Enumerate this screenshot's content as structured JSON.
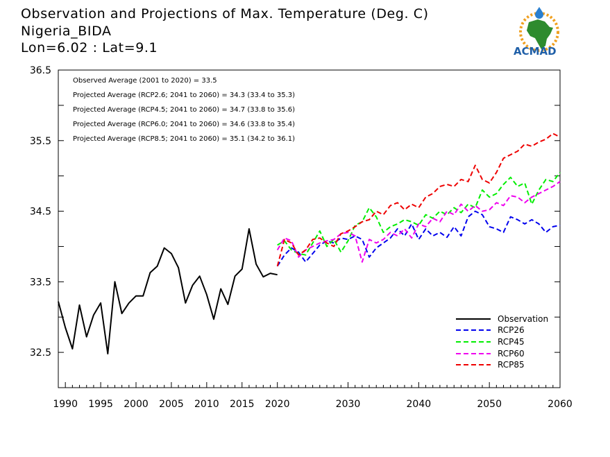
{
  "title": {
    "line1": "Observation and Projections of Max. Temperature (Deg. C)",
    "line2": "Nigeria_BIDA",
    "line3": "Lon=6.02 : Lat=9.1"
  },
  "logo": {
    "text": "ACMAD",
    "colors": {
      "land": "#2e8b2e",
      "ring": "#f0a020",
      "drop": "#2a7fd0",
      "text": "#1f5fa8"
    }
  },
  "annotations": [
    "Observed Average (2001 to 2020) = 33.5",
    "Projected Average (RCP2.6; 2041 to 2060) = 34.3 (33.4 to 35.3)",
    "Projected Average (RCP4.5; 2041 to 2060) = 34.7 (33.8 to 35.6)",
    "Projected Average (RCP6.0; 2041 to 2060) = 34.6 (33.8 to 35.4)",
    "Projected Average (RCP8.5; 2041 to 2060) = 35.1 (34.2 to 36.1)"
  ],
  "chart_data": {
    "type": "line",
    "xlim": [
      1989,
      2060
    ],
    "ylim": [
      32.0,
      36.5
    ],
    "x_ticks": [
      {
        "value": 1990,
        "label": "1990"
      },
      {
        "value": 1995,
        "label": "1995"
      },
      {
        "value": 2000,
        "label": "2000"
      },
      {
        "value": 2005,
        "label": "2005"
      },
      {
        "value": 2010,
        "label": "2010"
      },
      {
        "value": 2015,
        "label": "2015"
      },
      {
        "value": 2020,
        "label": "2020"
      },
      {
        "value": 2030,
        "label": "2030"
      },
      {
        "value": 2040,
        "label": "2040"
      },
      {
        "value": 2050,
        "label": "2050"
      },
      {
        "value": 2060,
        "label": "2060"
      }
    ],
    "y_ticks": [
      {
        "value": 32.5,
        "label": "32.5"
      },
      {
        "value": 33.0,
        "label": ""
      },
      {
        "value": 33.5,
        "label": "33.5"
      },
      {
        "value": 34.0,
        "label": ""
      },
      {
        "value": 34.5,
        "label": "34.5"
      },
      {
        "value": 35.0,
        "label": ""
      },
      {
        "value": 35.5,
        "label": "35.5"
      },
      {
        "value": 36.0,
        "label": ""
      },
      {
        "value": 36.5,
        "label": "36.5"
      }
    ],
    "grid": false,
    "legend_position": "bottom-right",
    "series": [
      {
        "name": "Observation",
        "color": "#000000",
        "dash": "solid",
        "x": [
          1989,
          1990,
          1991,
          1992,
          1993,
          1994,
          1995,
          1996,
          1997,
          1998,
          1999,
          2000,
          2001,
          2002,
          2003,
          2004,
          2005,
          2006,
          2007,
          2008,
          2009,
          2010,
          2011,
          2012,
          2013,
          2014,
          2015,
          2016,
          2017,
          2018,
          2019,
          2020
        ],
        "values": [
          33.22,
          32.85,
          32.55,
          33.17,
          32.72,
          33.03,
          33.2,
          32.48,
          33.5,
          33.05,
          33.2,
          33.3,
          33.3,
          33.63,
          33.72,
          33.98,
          33.9,
          33.7,
          33.2,
          33.45,
          33.58,
          33.32,
          32.97,
          33.4,
          33.18,
          33.58,
          33.68,
          34.25,
          33.75,
          33.57,
          33.62,
          33.6
        ]
      },
      {
        "name": "RCP26",
        "color": "#0000ee",
        "dash": "dashed",
        "x": [
          2020,
          2021,
          2022,
          2023,
          2024,
          2025,
          2026,
          2027,
          2028,
          2029,
          2030,
          2031,
          2032,
          2033,
          2034,
          2035,
          2036,
          2037,
          2038,
          2039,
          2040,
          2041,
          2042,
          2043,
          2044,
          2045,
          2046,
          2047,
          2048,
          2049,
          2050,
          2051,
          2052,
          2053,
          2054,
          2055,
          2056,
          2057,
          2058,
          2059,
          2060
        ],
        "values": [
          33.72,
          33.88,
          33.98,
          33.92,
          33.78,
          33.9,
          34.02,
          34.08,
          34.05,
          34.12,
          34.1,
          34.15,
          34.1,
          33.85,
          33.98,
          34.05,
          34.12,
          34.25,
          34.15,
          34.32,
          34.1,
          34.25,
          34.15,
          34.2,
          34.13,
          34.28,
          34.15,
          34.42,
          34.5,
          34.45,
          34.28,
          34.25,
          34.2,
          34.42,
          34.38,
          34.32,
          34.38,
          34.32,
          34.2,
          34.28,
          34.3
        ]
      },
      {
        "name": "RCP45",
        "color": "#00ee00",
        "dash": "dashed",
        "x": [
          2020,
          2021,
          2022,
          2023,
          2024,
          2025,
          2026,
          2027,
          2028,
          2029,
          2030,
          2031,
          2032,
          2033,
          2034,
          2035,
          2036,
          2037,
          2038,
          2039,
          2040,
          2041,
          2042,
          2043,
          2044,
          2045,
          2046,
          2047,
          2048,
          2049,
          2050,
          2051,
          2052,
          2053,
          2054,
          2055,
          2056,
          2057,
          2058,
          2059,
          2060
        ],
        "values": [
          34.02,
          34.08,
          33.95,
          33.9,
          33.88,
          34.05,
          34.22,
          34.0,
          34.1,
          33.92,
          34.08,
          34.3,
          34.35,
          34.55,
          34.42,
          34.2,
          34.28,
          34.32,
          34.38,
          34.35,
          34.3,
          34.45,
          34.4,
          34.5,
          34.45,
          34.55,
          34.48,
          34.6,
          34.55,
          34.8,
          34.7,
          34.75,
          34.88,
          34.98,
          34.85,
          34.9,
          34.6,
          34.8,
          34.95,
          34.92,
          35.05
        ]
      },
      {
        "name": "RCP60",
        "color": "#ee00ee",
        "dash": "dashed",
        "x": [
          2020,
          2021,
          2022,
          2023,
          2024,
          2025,
          2026,
          2027,
          2028,
          2029,
          2030,
          2031,
          2032,
          2033,
          2034,
          2035,
          2036,
          2037,
          2038,
          2039,
          2040,
          2041,
          2042,
          2043,
          2044,
          2045,
          2046,
          2047,
          2048,
          2049,
          2050,
          2051,
          2052,
          2053,
          2054,
          2055,
          2056,
          2057,
          2058,
          2059,
          2060
        ],
        "values": [
          33.95,
          34.12,
          34.08,
          33.85,
          33.95,
          34.0,
          34.05,
          34.08,
          34.1,
          34.18,
          34.2,
          34.15,
          33.78,
          34.1,
          34.05,
          34.1,
          34.2,
          34.15,
          34.25,
          34.12,
          34.32,
          34.28,
          34.4,
          34.35,
          34.5,
          34.45,
          34.6,
          34.5,
          34.58,
          34.5,
          34.52,
          34.62,
          34.58,
          34.72,
          34.7,
          34.62,
          34.7,
          34.75,
          34.8,
          34.85,
          34.92
        ]
      },
      {
        "name": "RCP85",
        "color": "#ee0000",
        "dash": "dashed",
        "x": [
          2020,
          2021,
          2022,
          2023,
          2024,
          2025,
          2026,
          2027,
          2028,
          2029,
          2030,
          2031,
          2032,
          2033,
          2034,
          2035,
          2036,
          2037,
          2038,
          2039,
          2040,
          2041,
          2042,
          2043,
          2044,
          2045,
          2046,
          2047,
          2048,
          2049,
          2050,
          2051,
          2052,
          2053,
          2054,
          2055,
          2056,
          2057,
          2058,
          2059,
          2060
        ],
        "values": [
          33.72,
          34.1,
          34.05,
          33.88,
          33.95,
          34.1,
          34.12,
          34.05,
          34.0,
          34.18,
          34.22,
          34.28,
          34.35,
          34.38,
          34.5,
          34.45,
          34.58,
          34.62,
          34.52,
          34.6,
          34.55,
          34.7,
          34.75,
          34.85,
          34.88,
          34.85,
          34.95,
          34.92,
          35.15,
          34.95,
          34.9,
          35.05,
          35.25,
          35.3,
          35.35,
          35.45,
          35.42,
          35.48,
          35.52,
          35.6,
          35.55
        ]
      }
    ]
  }
}
